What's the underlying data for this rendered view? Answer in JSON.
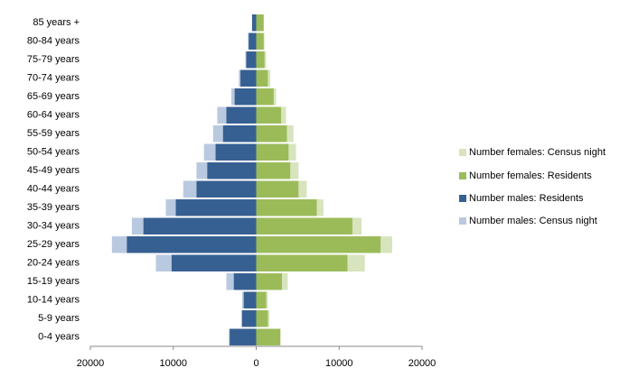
{
  "chart_data": {
    "type": "pyramid",
    "categories": [
      "0-4 years",
      "5-9 years",
      "10-14 years",
      "15-19 years",
      "20-24 years",
      "25-29 years",
      "30-34 years",
      "35-39 years",
      "40-44 years",
      "45-49 years",
      "50-54 years",
      "55-59 years",
      "60-64 years",
      "65-69 years",
      "70-74 years",
      "75-79 years",
      "80-84 years",
      "85 years +"
    ],
    "series": [
      {
        "name": "Number females: Census night",
        "color": "#d7e4bd",
        "values": [
          2950,
          1600,
          1400,
          3800,
          13100,
          16400,
          12700,
          8100,
          6100,
          5100,
          4800,
          4500,
          3600,
          2400,
          1700,
          1200,
          1000,
          900
        ]
      },
      {
        "name": "Number females: Residents",
        "color": "#9bbb59",
        "values": [
          2900,
          1400,
          1200,
          3100,
          11000,
          15000,
          11600,
          7300,
          5100,
          4100,
          3900,
          3700,
          3000,
          2100,
          1400,
          1000,
          900,
          900
        ]
      },
      {
        "name": "Number males: Residents",
        "color": "#376092",
        "values": [
          -3200,
          -1700,
          -1500,
          -2700,
          -10200,
          -15600,
          -13600,
          -9700,
          -7200,
          -5900,
          -4900,
          -4000,
          -3600,
          -2600,
          -1900,
          -1200,
          -900,
          -500
        ]
      },
      {
        "name": "Number males: Census night",
        "color": "#b9c9e0",
        "values": [
          -3300,
          -1800,
          -1700,
          -3600,
          -12100,
          -17400,
          -15000,
          -10900,
          -8800,
          -7200,
          -6300,
          -5200,
          -4700,
          -3000,
          -2100,
          -1300,
          -1000,
          -500
        ]
      }
    ],
    "xlim": [
      -20000,
      20000
    ],
    "xticks": [
      {
        "value": -20000,
        "label": "20000"
      },
      {
        "value": -10000,
        "label": "10000"
      },
      0,
      10000,
      20000
    ],
    "legend": "right"
  }
}
